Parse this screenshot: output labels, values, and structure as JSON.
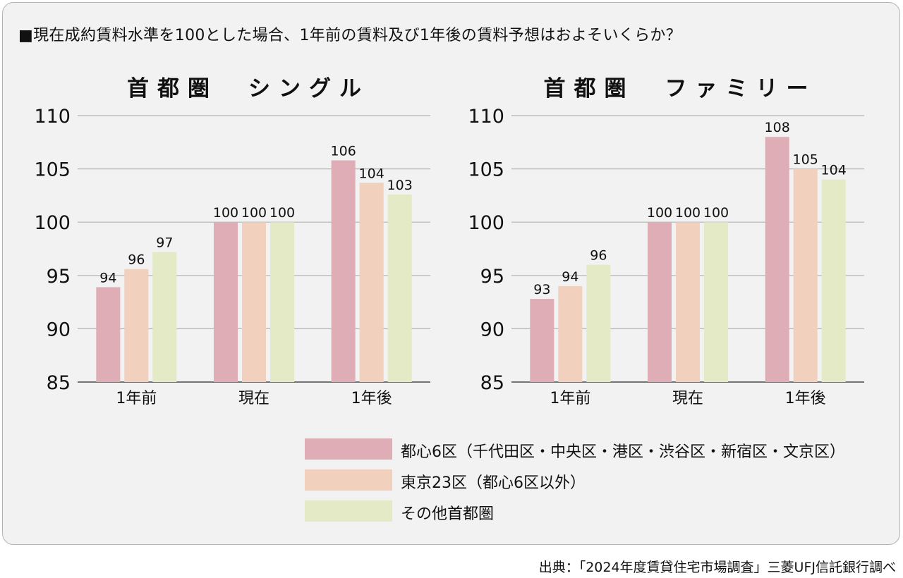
{
  "question": "■現在成約賃料水準を100とした場合、1年前の賃料及び1年後の賃料予想はおよそいくらか？",
  "colors": {
    "series": [
      "#deadb6",
      "#f1d0bd",
      "#e5eac6"
    ],
    "grid": "#b3b3b3",
    "axis": "#4a4a4a",
    "panel": "#f2f2f2"
  },
  "legend": [
    {
      "label": "都心6区（千代田区・中央区・港区・渋谷区・新宿区・文京区）"
    },
    {
      "label": "東京23区（都心6区以外）"
    },
    {
      "label": "その他首都圏"
    }
  ],
  "source": "出典：「2024年度賃貸住宅市場調査」三菱UFJ信託銀行調べ",
  "chart_data": [
    {
      "type": "bar",
      "title": "首都圏　シングル",
      "categories": [
        "1年前",
        "現在",
        "1年後"
      ],
      "ylim": [
        85,
        110
      ],
      "yticks": [
        85,
        90,
        95,
        100,
        105,
        110
      ],
      "grid": true,
      "legend_position": "bottom-right",
      "series": [
        {
          "name": "都心6区（千代田区・中央区・港区・渋谷区・新宿区・文京区）",
          "values": [
            93.9,
            100,
            105.8
          ],
          "labels": [
            "94",
            "100",
            "106"
          ]
        },
        {
          "name": "東京23区（都心6区以外）",
          "values": [
            95.6,
            100,
            103.7
          ],
          "labels": [
            "96",
            "100",
            "104"
          ]
        },
        {
          "name": "その他首都圏",
          "values": [
            97.2,
            100,
            102.6
          ],
          "labels": [
            "97",
            "100",
            "103"
          ]
        }
      ]
    },
    {
      "type": "bar",
      "title": "首都圏　ファミリー",
      "categories": [
        "1年前",
        "現在",
        "1年後"
      ],
      "ylim": [
        85,
        110
      ],
      "yticks": [
        85,
        90,
        95,
        100,
        105,
        110
      ],
      "grid": true,
      "legend_position": "bottom-right",
      "series": [
        {
          "name": "都心6区（千代田区・中央区・港区・渋谷区・新宿区・文京区）",
          "values": [
            92.8,
            100,
            108
          ],
          "labels": [
            "93",
            "100",
            "108"
          ]
        },
        {
          "name": "東京23区（都心6区以外）",
          "values": [
            94,
            100,
            105
          ],
          "labels": [
            "94",
            "100",
            "105"
          ]
        },
        {
          "name": "その他首都圏",
          "values": [
            96,
            100,
            104
          ],
          "labels": [
            "96",
            "100",
            "104"
          ]
        }
      ]
    }
  ]
}
